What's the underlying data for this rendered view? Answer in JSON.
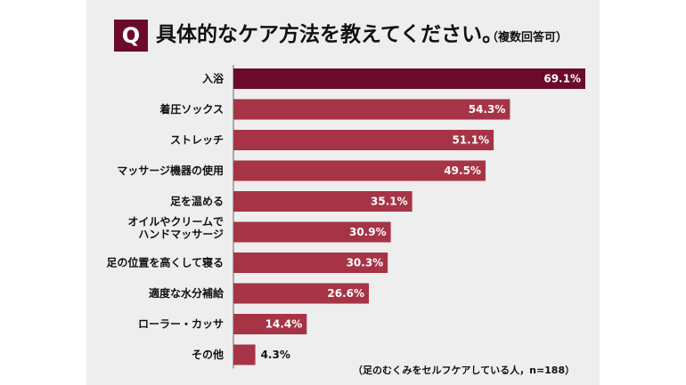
{
  "question_badge": "Q",
  "title": "具体的なケア方法を教えてください。",
  "subtitle": "（複数回答可）",
  "note": "（足のむくみをセルフケアしている人，n=188）",
  "colors": {
    "top_bar": "#6b0b2a",
    "bar": "#a63446",
    "panel": "#eeeeee"
  },
  "chart_data": {
    "type": "bar",
    "orientation": "horizontal",
    "title": "具体的なケア方法を教えてください。",
    "categories": [
      "入浴",
      "着圧ソックス",
      "ストレッチ",
      "マッサージ機器の使用",
      "足を温める",
      "オイルやクリームでハンドマッサージ",
      "足の位置を高くして寝る",
      "適度な水分補給",
      "ローラー・カッサ",
      "その他"
    ],
    "category_lines": [
      [
        "入浴"
      ],
      [
        "着圧ソックス"
      ],
      [
        "ストレッチ"
      ],
      [
        "マッサージ機器の使用"
      ],
      [
        "足を温める"
      ],
      [
        "オイルやクリームで",
        "ハンドマッサージ"
      ],
      [
        "足の位置を高くして寝る"
      ],
      [
        "適度な水分補給"
      ],
      [
        "ローラー・カッサ"
      ],
      [
        "その他"
      ]
    ],
    "values": [
      69.1,
      54.3,
      51.1,
      49.5,
      35.1,
      30.9,
      30.3,
      26.6,
      14.4,
      4.3
    ],
    "value_labels": [
      "69.1%",
      "54.3%",
      "51.1%",
      "49.5%",
      "35.1%",
      "30.9%",
      "30.3%",
      "26.6%",
      "14.4%",
      "4.3%"
    ],
    "unit": "%",
    "xlim": [
      0,
      69.1
    ],
    "grid": false,
    "legend": "none"
  }
}
